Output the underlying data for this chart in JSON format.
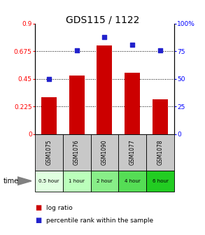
{
  "title": "GDS115 / 1122",
  "samples": [
    "GSM1075",
    "GSM1076",
    "GSM1090",
    "GSM1077",
    "GSM1078"
  ],
  "time_labels": [
    "0.5 hour",
    "1 hour",
    "2 hour",
    "4 hour",
    "6 hour"
  ],
  "log_ratio": [
    0.3,
    0.475,
    0.72,
    0.5,
    0.28
  ],
  "percentile_rank": [
    50,
    76,
    88,
    81,
    76
  ],
  "bar_color": "#cc0000",
  "dot_color": "#2222cc",
  "left_ylim": [
    0,
    0.9
  ],
  "right_ylim": [
    0,
    100
  ],
  "left_yticks": [
    0,
    0.225,
    0.45,
    0.675,
    0.9
  ],
  "left_yticklabels": [
    "0",
    "0.225",
    "0.45",
    "0.675",
    "0.9"
  ],
  "right_yticks": [
    0,
    25,
    50,
    75,
    100
  ],
  "right_yticklabels": [
    "0",
    "25",
    "50",
    "75",
    "100%"
  ],
  "hlines": [
    0.225,
    0.45,
    0.675
  ],
  "bar_width": 0.55,
  "title_fontsize": 10,
  "tick_fontsize": 6.5,
  "legend_fontsize": 6.5,
  "sample_bg": "#c8c8c8",
  "time_colors": [
    "#e0ffe0",
    "#bbffbb",
    "#88ee88",
    "#55dd55",
    "#22cc22"
  ]
}
